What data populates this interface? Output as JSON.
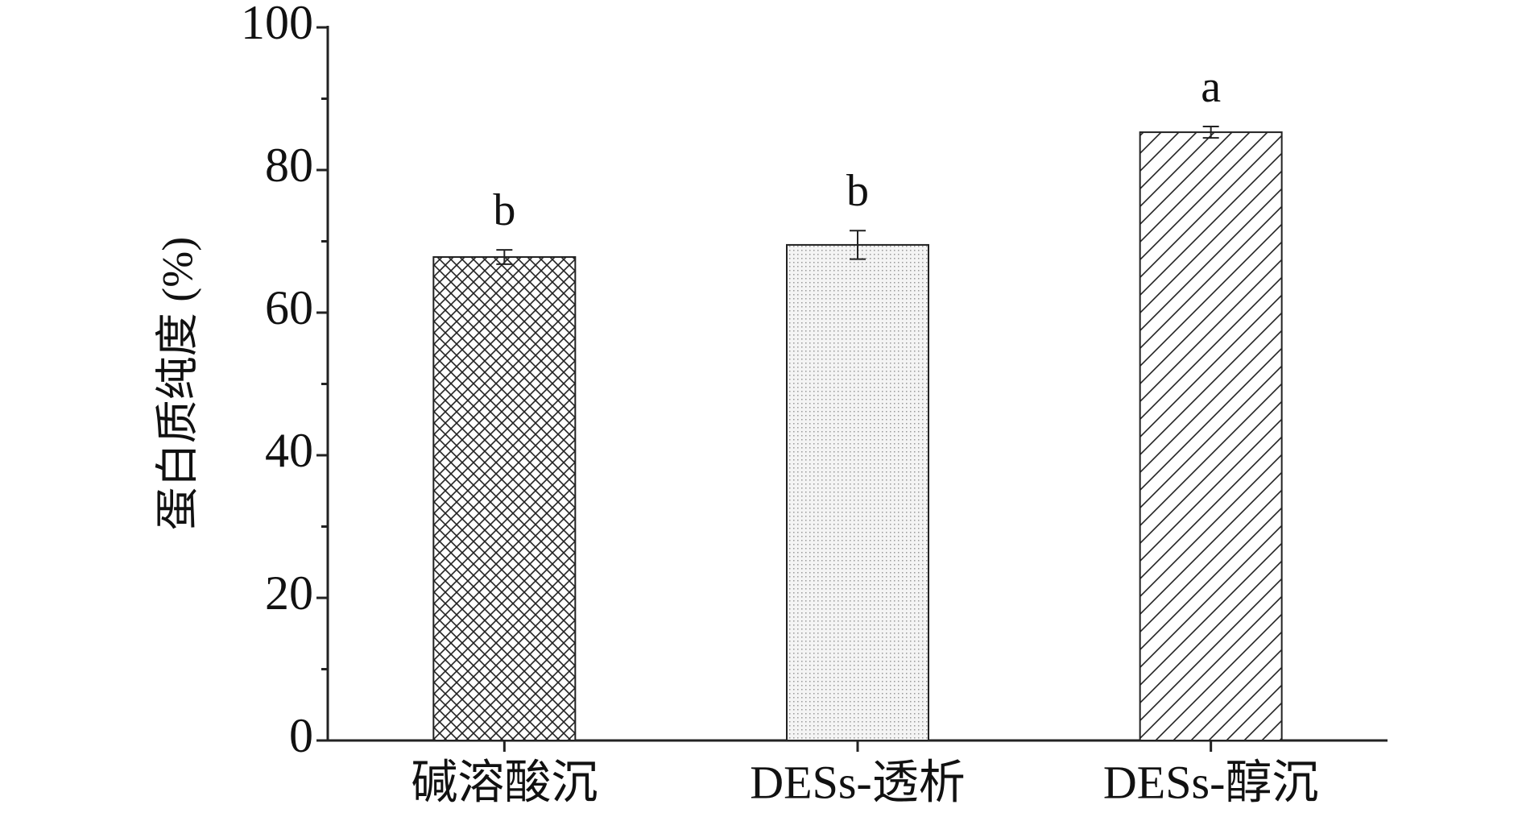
{
  "chart_data": {
    "type": "bar",
    "y_label": "蛋白质纯度 (%)",
    "categories": [
      "碱溶酸沉",
      "DESs-透析",
      "DESs-醇沉"
    ],
    "values": [
      67.8,
      69.5,
      85.3
    ],
    "errors": [
      1.0,
      2.0,
      0.8
    ],
    "annotations": [
      "b",
      "b",
      "a"
    ],
    "patterns": [
      "crosshatch",
      "dots",
      "diagonal"
    ],
    "color": "#222222",
    "ylim": [
      0,
      100
    ],
    "yticks": [
      0,
      20,
      40,
      60,
      80,
      100
    ],
    "yticks_minor": [
      10,
      30,
      50,
      70,
      90
    ],
    "grid": false
  }
}
